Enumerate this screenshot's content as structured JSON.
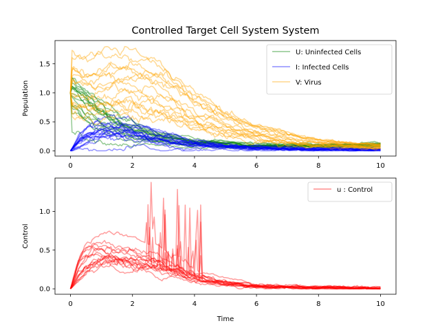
{
  "figure": {
    "background": "#ffffff",
    "title": "Controlled Target Cell System System"
  },
  "chart_data": [
    {
      "type": "line",
      "title": "Controlled Target Cell System System",
      "xlabel": "",
      "ylabel": "Population",
      "xlim": [
        -0.5,
        10.5
      ],
      "ylim": [
        -0.09,
        1.9
      ],
      "xticks": [
        0,
        2,
        4,
        6,
        8,
        10
      ],
      "xtick_labels": [
        "0",
        "2",
        "4",
        "6",
        "8",
        "10"
      ],
      "yticks": [
        0.0,
        0.5,
        1.0,
        1.5
      ],
      "ytick_labels": [
        "0.0",
        "0.5",
        "1.0",
        "1.5"
      ],
      "grid": false,
      "legend_position": "top-right",
      "series": [
        {
          "name": "U: Uninfected Cells",
          "color": "#008000",
          "x": [
            0,
            0.5,
            1,
            1.5,
            2,
            2.5,
            3,
            3.5,
            4,
            5,
            6,
            7,
            8,
            9,
            10
          ],
          "values": [
            1.0,
            0.78,
            0.58,
            0.44,
            0.34,
            0.27,
            0.22,
            0.18,
            0.15,
            0.11,
            0.09,
            0.08,
            0.08,
            0.09,
            0.1
          ]
        },
        {
          "name": "I: Infected Cells",
          "color": "#0000ff",
          "x": [
            0,
            0.3,
            0.6,
            1,
            1.5,
            2,
            2.5,
            3,
            3.5,
            4,
            5,
            6,
            7,
            8,
            9,
            10
          ],
          "values": [
            0.0,
            0.15,
            0.25,
            0.3,
            0.3,
            0.27,
            0.22,
            0.17,
            0.13,
            0.1,
            0.06,
            0.04,
            0.03,
            0.02,
            0.02,
            0.02
          ]
        },
        {
          "name": "V: Virus",
          "color": "#ffa500",
          "x": [
            0,
            0.5,
            1,
            1.5,
            2,
            2.5,
            3,
            3.5,
            4,
            5,
            6,
            7,
            8,
            9,
            10
          ],
          "values": [
            1.0,
            0.95,
            0.98,
            1.02,
            1.0,
            0.95,
            0.85,
            0.72,
            0.6,
            0.4,
            0.27,
            0.18,
            0.12,
            0.09,
            0.07
          ]
        }
      ]
    },
    {
      "type": "line",
      "title": "",
      "xlabel": "Time",
      "ylabel": "Control",
      "xlim": [
        -0.5,
        10.5
      ],
      "ylim": [
        -0.07,
        1.43
      ],
      "xticks": [
        0,
        2,
        4,
        6,
        8,
        10
      ],
      "xtick_labels": [
        "0",
        "2",
        "4",
        "6",
        "8",
        "10"
      ],
      "yticks": [
        0.0,
        0.5,
        1.0
      ],
      "ytick_labels": [
        "0.0",
        "0.5",
        "1.0"
      ],
      "grid": false,
      "legend_position": "top-right",
      "series": [
        {
          "name": "u : Control",
          "color": "#ff0000",
          "x": [
            0,
            0.3,
            0.6,
            1,
            1.5,
            2,
            2.5,
            3,
            3.5,
            4,
            4.5,
            5,
            6,
            7,
            8,
            9,
            10
          ],
          "values": [
            0.0,
            0.22,
            0.33,
            0.38,
            0.37,
            0.33,
            0.3,
            0.26,
            0.2,
            0.14,
            0.09,
            0.06,
            0.03,
            0.02,
            0.01,
            0.01,
            0.0
          ]
        }
      ]
    }
  ]
}
